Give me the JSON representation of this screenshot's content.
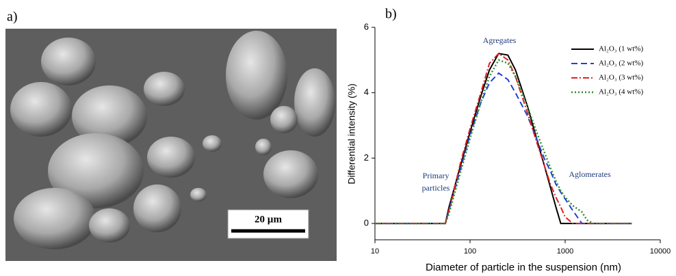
{
  "image": {
    "label": "a)",
    "scale_bar": "20 µm"
  },
  "chart_data": {
    "type": "line",
    "label": "b)",
    "xlabel": "Diameter of particle in the suspension (nm)",
    "ylabel": "Differential intensity (%)",
    "xscale": "log",
    "xlim": [
      10,
      10000
    ],
    "xticks": [
      10,
      100,
      1000,
      10000
    ],
    "ylim": [
      -0.5,
      6
    ],
    "yticks": [
      0,
      2,
      4,
      6
    ],
    "legend": "upper right",
    "annotations": [
      "Agregates",
      "Primary",
      "particles",
      "Aglomerates"
    ],
    "x": [
      10,
      20,
      40,
      55,
      60,
      70,
      80,
      100,
      130,
      160,
      200,
      250,
      300,
      400,
      500,
      600,
      700,
      800,
      900,
      1000,
      1200,
      1500,
      1700,
      2000,
      3000,
      5000
    ],
    "series": [
      {
        "name": "Al₂O₃ (1 wt%)",
        "color": "#000000",
        "dash": "solid",
        "values": [
          0,
          0,
          0,
          0,
          0.5,
          1.2,
          1.8,
          2.8,
          3.9,
          4.7,
          5.2,
          5.15,
          4.7,
          3.6,
          2.6,
          1.8,
          1.1,
          0.5,
          0,
          0,
          0,
          0,
          0,
          0,
          0,
          0
        ]
      },
      {
        "name": "Al₂O₃ (2 wt%)",
        "color": "#1f3fd8",
        "dash": "dashed",
        "values": [
          0,
          0,
          0,
          0,
          0.4,
          1.1,
          1.7,
          2.7,
          3.7,
          4.3,
          4.6,
          4.4,
          4.0,
          3.3,
          2.6,
          2.0,
          1.6,
          1.2,
          0.95,
          0.75,
          0.4,
          0,
          0,
          0,
          0,
          0
        ]
      },
      {
        "name": "Al₂O₃ (3 wt%)",
        "color": "#e02020",
        "dash": "dashdot",
        "values": [
          0,
          0,
          0,
          0,
          0.4,
          1.2,
          1.9,
          2.9,
          4.0,
          4.9,
          5.2,
          5.0,
          4.5,
          3.4,
          2.5,
          1.8,
          1.2,
          0.8,
          0.5,
          0.2,
          0,
          0,
          0,
          0,
          0,
          0
        ]
      },
      {
        "name": "Al₂O₃ (4 wt%)",
        "color": "#2e8b2e",
        "dash": "dotted",
        "values": [
          0,
          0,
          0,
          0,
          0.3,
          1.0,
          1.6,
          2.6,
          3.7,
          4.5,
          5.0,
          4.9,
          4.5,
          3.6,
          2.8,
          2.2,
          1.7,
          1.3,
          1.0,
          0.8,
          0.55,
          0.35,
          0.1,
          0,
          0,
          0
        ]
      }
    ]
  }
}
